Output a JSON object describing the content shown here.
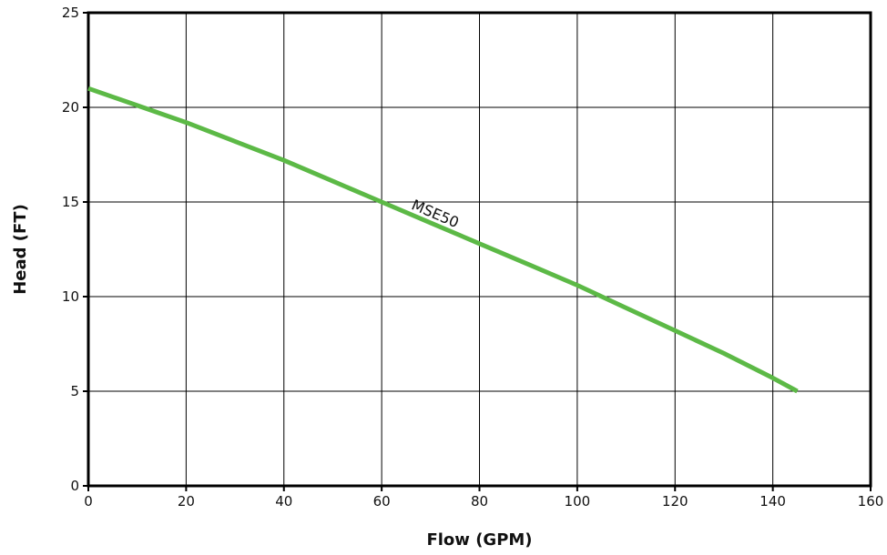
{
  "chart_data": {
    "type": "line",
    "title": "",
    "xlabel": "Flow (GPM)",
    "ylabel": "Head (FT)",
    "xlim": [
      0,
      160
    ],
    "ylim": [
      0,
      25
    ],
    "xticks": [
      0,
      20,
      40,
      60,
      80,
      100,
      120,
      140,
      160
    ],
    "yticks": [
      0,
      5,
      10,
      15,
      20,
      25
    ],
    "grid": true,
    "series": [
      {
        "name": "MSE50",
        "color": "#5cb946",
        "x": [
          0,
          10,
          20,
          30,
          40,
          50,
          60,
          70,
          80,
          90,
          100,
          110,
          120,
          130,
          140,
          145
        ],
        "y": [
          21.0,
          20.1,
          19.2,
          18.2,
          17.2,
          16.1,
          15.0,
          13.9,
          12.8,
          11.7,
          10.6,
          9.4,
          8.2,
          7.0,
          5.7,
          5.0
        ]
      }
    ]
  }
}
